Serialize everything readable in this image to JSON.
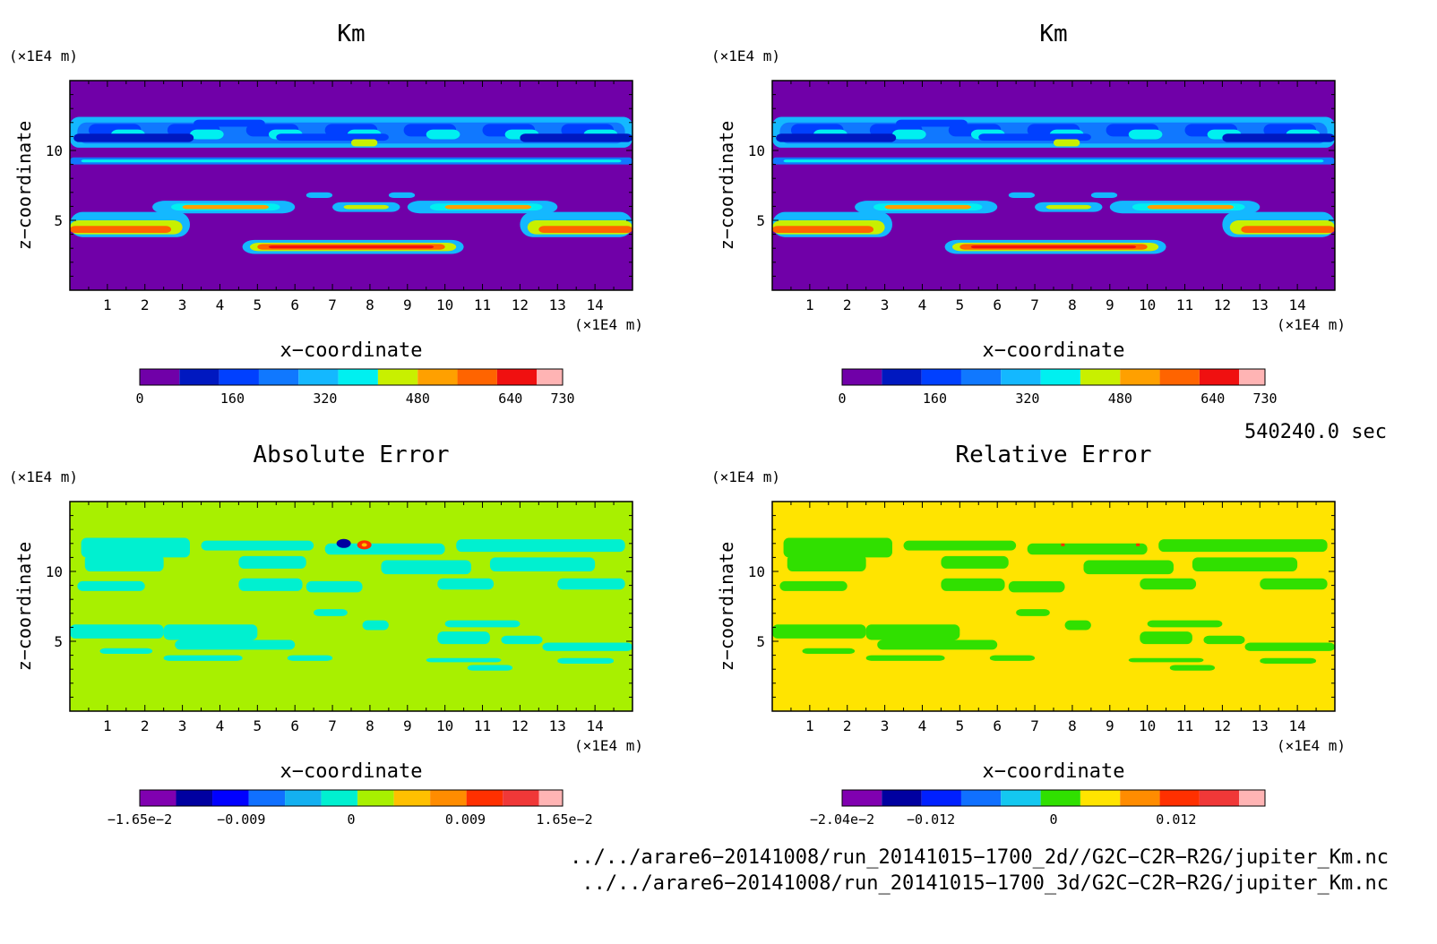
{
  "panels": [
    {
      "title": "Km",
      "unit_y": "(×1E4 m)",
      "unit_x": "(×1E4 m)",
      "xlabel": "x−coordinate",
      "ylabel": "z−coordinate",
      "xticks": [
        "1",
        "2",
        "3",
        "4",
        "5",
        "6",
        "7",
        "8",
        "9",
        "10",
        "11",
        "12",
        "13",
        "14"
      ],
      "yticks": [
        "5",
        "10"
      ],
      "colorbar": {
        "colors": [
          "#7000a8",
          "#0018c0",
          "#0040ff",
          "#1078ff",
          "#14b8ff",
          "#00f0f0",
          "#c8f000",
          "#ffa000",
          "#ff6400",
          "#f01010",
          "#ffb4b4"
        ],
        "labels": [
          "0",
          "160",
          "320",
          "480",
          "640",
          "730"
        ]
      }
    },
    {
      "title": "Km",
      "unit_y": "(×1E4 m)",
      "unit_x": "(×1E4 m)",
      "xlabel": "x−coordinate",
      "ylabel": "z−coordinate",
      "xticks": [
        "1",
        "2",
        "3",
        "4",
        "5",
        "6",
        "7",
        "8",
        "9",
        "10",
        "11",
        "12",
        "13",
        "14"
      ],
      "yticks": [
        "5",
        "10"
      ],
      "colorbar": {
        "colors": [
          "#7000a8",
          "#0018c0",
          "#0040ff",
          "#1078ff",
          "#14b8ff",
          "#00f0f0",
          "#c8f000",
          "#ffa000",
          "#ff6400",
          "#f01010",
          "#ffb4b4"
        ],
        "labels": [
          "0",
          "160",
          "320",
          "480",
          "640",
          "730"
        ]
      }
    },
    {
      "title": "Absolute Error",
      "unit_y": "(×1E4 m)",
      "unit_x": "(×1E4 m)",
      "xlabel": "x−coordinate",
      "ylabel": "z−coordinate",
      "xticks": [
        "1",
        "2",
        "3",
        "4",
        "5",
        "6",
        "7",
        "8",
        "9",
        "10",
        "11",
        "12",
        "13",
        "14"
      ],
      "yticks": [
        "5",
        "10"
      ],
      "colorbar": {
        "colors": [
          "#8000b0",
          "#0000a0",
          "#0000ff",
          "#1070ff",
          "#14b0f0",
          "#00f0d0",
          "#a8f000",
          "#ffc000",
          "#ff8c00",
          "#ff3000",
          "#f03838",
          "#ffb4b4"
        ],
        "labels": [
          "−1.65e−2",
          "−0.009",
          "0",
          "0.009",
          "1.65e−2"
        ]
      }
    },
    {
      "title": "Relative Error",
      "unit_y": "(×1E4 m)",
      "unit_x": "(×1E4 m)",
      "xlabel": "x−coordinate",
      "ylabel": "z−coordinate",
      "xticks": [
        "1",
        "2",
        "3",
        "4",
        "5",
        "6",
        "7",
        "8",
        "9",
        "10",
        "11",
        "12",
        "13",
        "14"
      ],
      "yticks": [
        "5",
        "10"
      ],
      "colorbar": {
        "colors": [
          "#8000b0",
          "#0000a0",
          "#0020ff",
          "#1070ff",
          "#14c8f0",
          "#30e000",
          "#ffe400",
          "#ff8c00",
          "#ff3000",
          "#f03838",
          "#ffb4b4"
        ],
        "labels": [
          "−2.04e−2",
          "−0.012",
          "0",
          "0.012"
        ]
      }
    }
  ],
  "time_label": "540240.0 sec",
  "files": [
    "../../arare6−20141008/run_20141015−1700_2d//G2C−C2R−R2G/jupiter_Km.nc",
    "../../arare6−20141008/run_20141015−1700_3d/G2C−C2R−R2G/jupiter_Km.nc"
  ],
  "chart_data": [
    {
      "type": "heatmap",
      "title": "Km",
      "xlabel": "x−coordinate",
      "ylabel": "z−coordinate",
      "xlim": [
        0,
        15
      ],
      "ylim": [
        0,
        15
      ],
      "colorscale": [
        0,
        730
      ],
      "colorbar_ticks": [
        0,
        160,
        320,
        480,
        640,
        730
      ]
    },
    {
      "type": "heatmap",
      "title": "Km",
      "xlabel": "x−coordinate",
      "ylabel": "z−coordinate",
      "xlim": [
        0,
        15
      ],
      "ylim": [
        0,
        15
      ],
      "colorscale": [
        0,
        730
      ],
      "colorbar_ticks": [
        0,
        160,
        320,
        480,
        640,
        730
      ]
    },
    {
      "type": "heatmap",
      "title": "Absolute Error",
      "xlabel": "x−coordinate",
      "ylabel": "z−coordinate",
      "xlim": [
        0,
        15
      ],
      "ylim": [
        0,
        15
      ],
      "colorscale": [
        -0.0165,
        0.0165
      ],
      "colorbar_ticks": [
        -0.0165,
        -0.009,
        0,
        0.009,
        0.0165
      ]
    },
    {
      "type": "heatmap",
      "title": "Relative Error",
      "xlabel": "x−coordinate",
      "ylabel": "z−coordinate",
      "xlim": [
        0,
        15
      ],
      "ylim": [
        0,
        15
      ],
      "colorscale": [
        -0.0204,
        0.0204
      ],
      "colorbar_ticks": [
        -0.0204,
        -0.012,
        0,
        0.012
      ]
    }
  ]
}
